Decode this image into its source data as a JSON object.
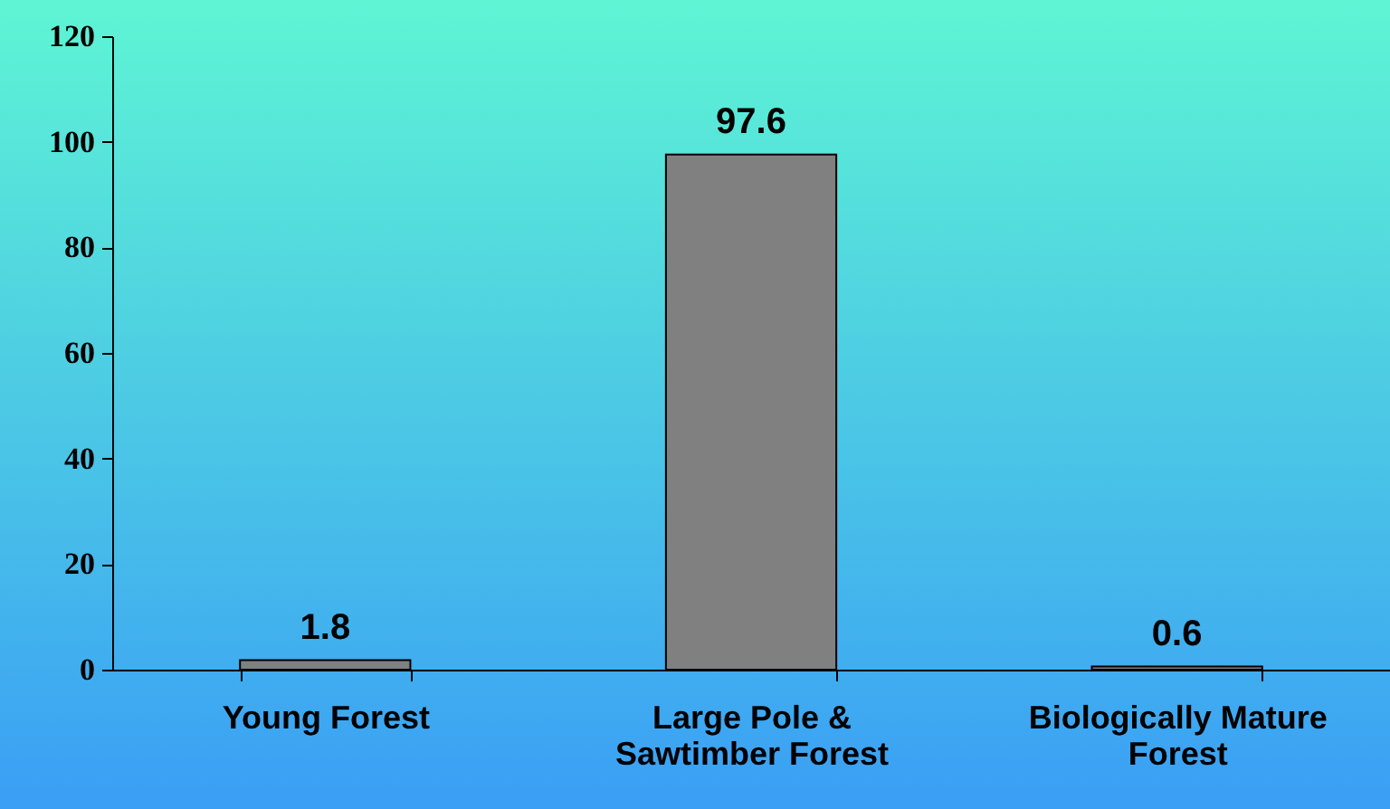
{
  "chart_data": {
    "type": "bar",
    "categories": [
      "Young Forest",
      "Large Pole & Sawtimber Forest",
      "Biologically Mature Forest"
    ],
    "values": [
      1.8,
      97.6,
      0.6
    ],
    "color": "#808080",
    "ylim": [
      0,
      120
    ],
    "yticks": [
      0,
      20,
      40,
      60,
      80,
      100,
      120
    ],
    "grid": false,
    "data_labels": true
  }
}
